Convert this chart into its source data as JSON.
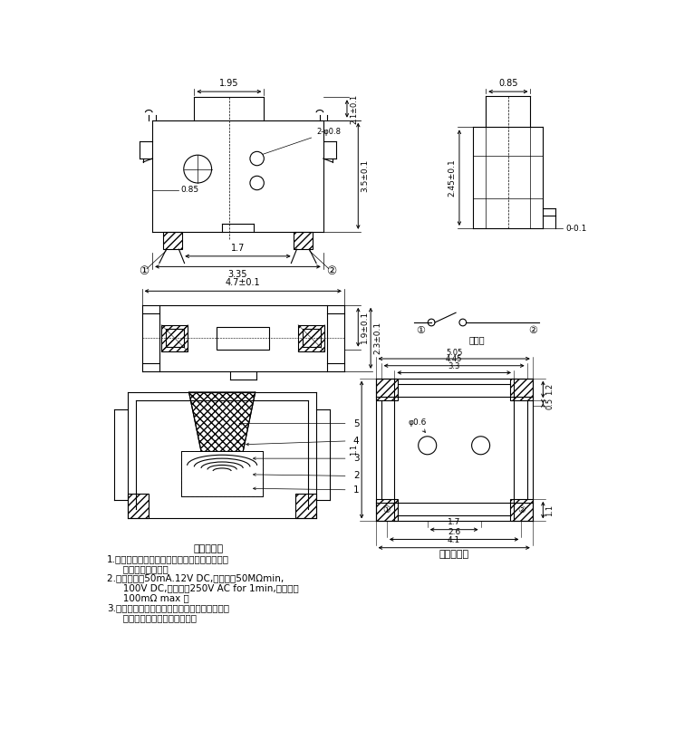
{
  "bg_color": "#ffffff",
  "line_color": "#000000",
  "tech_title": "技术要求：",
  "tech_line1": "1.零部件表面光洁无划伤，水花，变形，影响外",
  "tech_line1b": "   观及性能等缺陷。",
  "tech_line2": "2.额定电流：50mA.12V DC,绝缘电阶50MΩmin,",
  "tech_line2b": "   100V DC,介电强度250V AC for 1min,接触电阱00mΩ max 。",
  "tech_line3": "3.开关手感明显，档位清咰可靠，无卡滚现象，",
  "tech_line3b": "   消除外力后，应能快速回位。",
  "install_label": "安装参考图",
  "schematic_label": "原理图"
}
